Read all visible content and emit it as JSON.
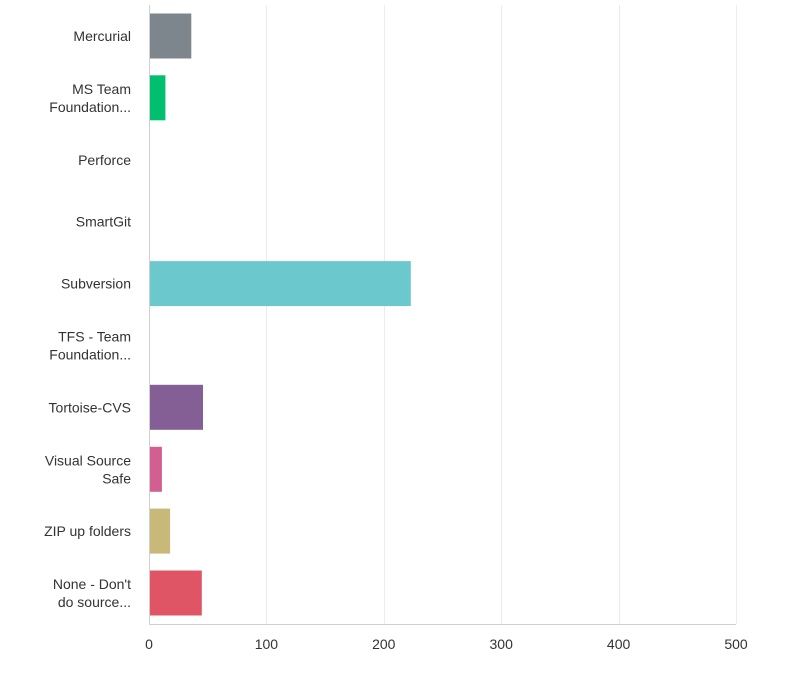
{
  "chart_data": {
    "type": "bar",
    "orientation": "horizontal",
    "categories": [
      [
        "Mercurial"
      ],
      [
        "MS Team",
        "Foundation..."
      ],
      [
        "Perforce"
      ],
      [
        "SmartGit"
      ],
      [
        "Subversion"
      ],
      [
        "TFS - Team",
        "Foundation..."
      ],
      [
        "Tortoise-CVS"
      ],
      [
        "Visual Source",
        "Safe"
      ],
      [
        "ZIP up folders"
      ],
      [
        "None - Don't",
        "do source..."
      ]
    ],
    "values": [
      36,
      14,
      0,
      0,
      223,
      0,
      46,
      11,
      18,
      45
    ],
    "colors": [
      "#7d868c",
      "#00bf6f",
      "#f05b24",
      "#2dccd3",
      "#6bc8cd",
      "#b0d5ba",
      "#845f95",
      "#d25f90",
      "#c9b978",
      "#e05566"
    ],
    "xlim": [
      0,
      500
    ],
    "x_ticks": [
      0,
      100,
      200,
      300,
      400,
      500
    ],
    "grid": true,
    "title": "",
    "xlabel": "",
    "ylabel": ""
  }
}
